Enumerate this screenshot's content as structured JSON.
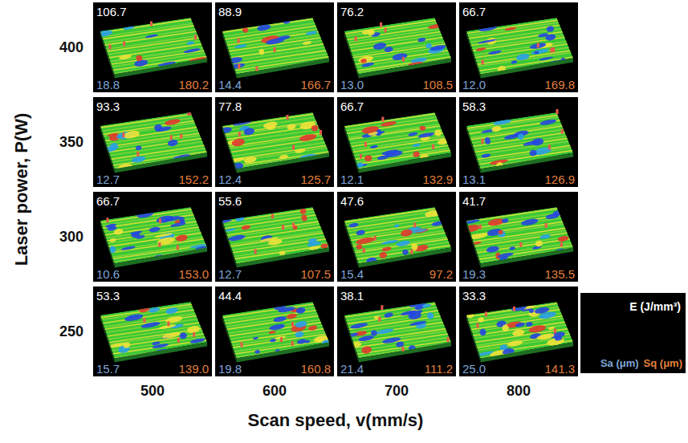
{
  "chart_data": {
    "type": "image_grid",
    "xlabel": "Scan speed, v(mm/s)",
    "ylabel": "Laser power, P(W)",
    "x_labels": [
      500,
      600,
      700,
      800
    ],
    "key_texts": {
      "E": "E (J/mm³)",
      "Sa": "Sa (μm)",
      "Sq": "Sq (μm)"
    },
    "rows": [
      {
        "power": 400,
        "cells": [
          {
            "E": 106.7,
            "Sa": 18.8,
            "Sq": 180.2
          },
          {
            "E": 88.9,
            "Sa": 14.4,
            "Sq": 166.7
          },
          {
            "E": 76.2,
            "Sa": {
              "value": 13,
              "label": "13.0"
            },
            "Sq": 108.5
          },
          {
            "E": 66.7,
            "Sa": {
              "value": 12,
              "label": "12.0"
            },
            "Sq": 169.8
          }
        ]
      },
      {
        "power": 350,
        "cells": [
          {
            "E": 93.3,
            "Sa": 12.7,
            "Sq": 152.2
          },
          {
            "E": 77.8,
            "Sa": 12.4,
            "Sq": 125.7
          },
          {
            "E": 66.7,
            "Sa": 12.1,
            "Sq": 132.9
          },
          {
            "E": 58.3,
            "Sa": 13.1,
            "Sq": 126.9
          }
        ]
      },
      {
        "power": 300,
        "cells": [
          {
            "E": 66.7,
            "Sa": 10.6,
            "Sq": {
              "value": 153,
              "label": "153.0"
            }
          },
          {
            "E": 55.6,
            "Sa": 12.7,
            "Sq": 107.5
          },
          {
            "E": 47.6,
            "Sa": 15.4,
            "Sq": 97.2
          },
          {
            "E": 41.7,
            "Sa": 19.3,
            "Sq": 135.5
          }
        ]
      },
      {
        "power": 250,
        "cells": [
          {
            "E": 53.3,
            "Sa": 15.7,
            "Sq": {
              "value": 139,
              "label": "139.0"
            }
          },
          {
            "E": 44.4,
            "Sa": 19.8,
            "Sq": 160.8
          },
          {
            "E": 38.1,
            "Sa": 21.4,
            "Sq": 111.2
          },
          {
            "E": 33.3,
            "Sa": {
              "value": 25,
              "label": "25.0"
            },
            "Sq": 141.3
          }
        ]
      }
    ]
  }
}
